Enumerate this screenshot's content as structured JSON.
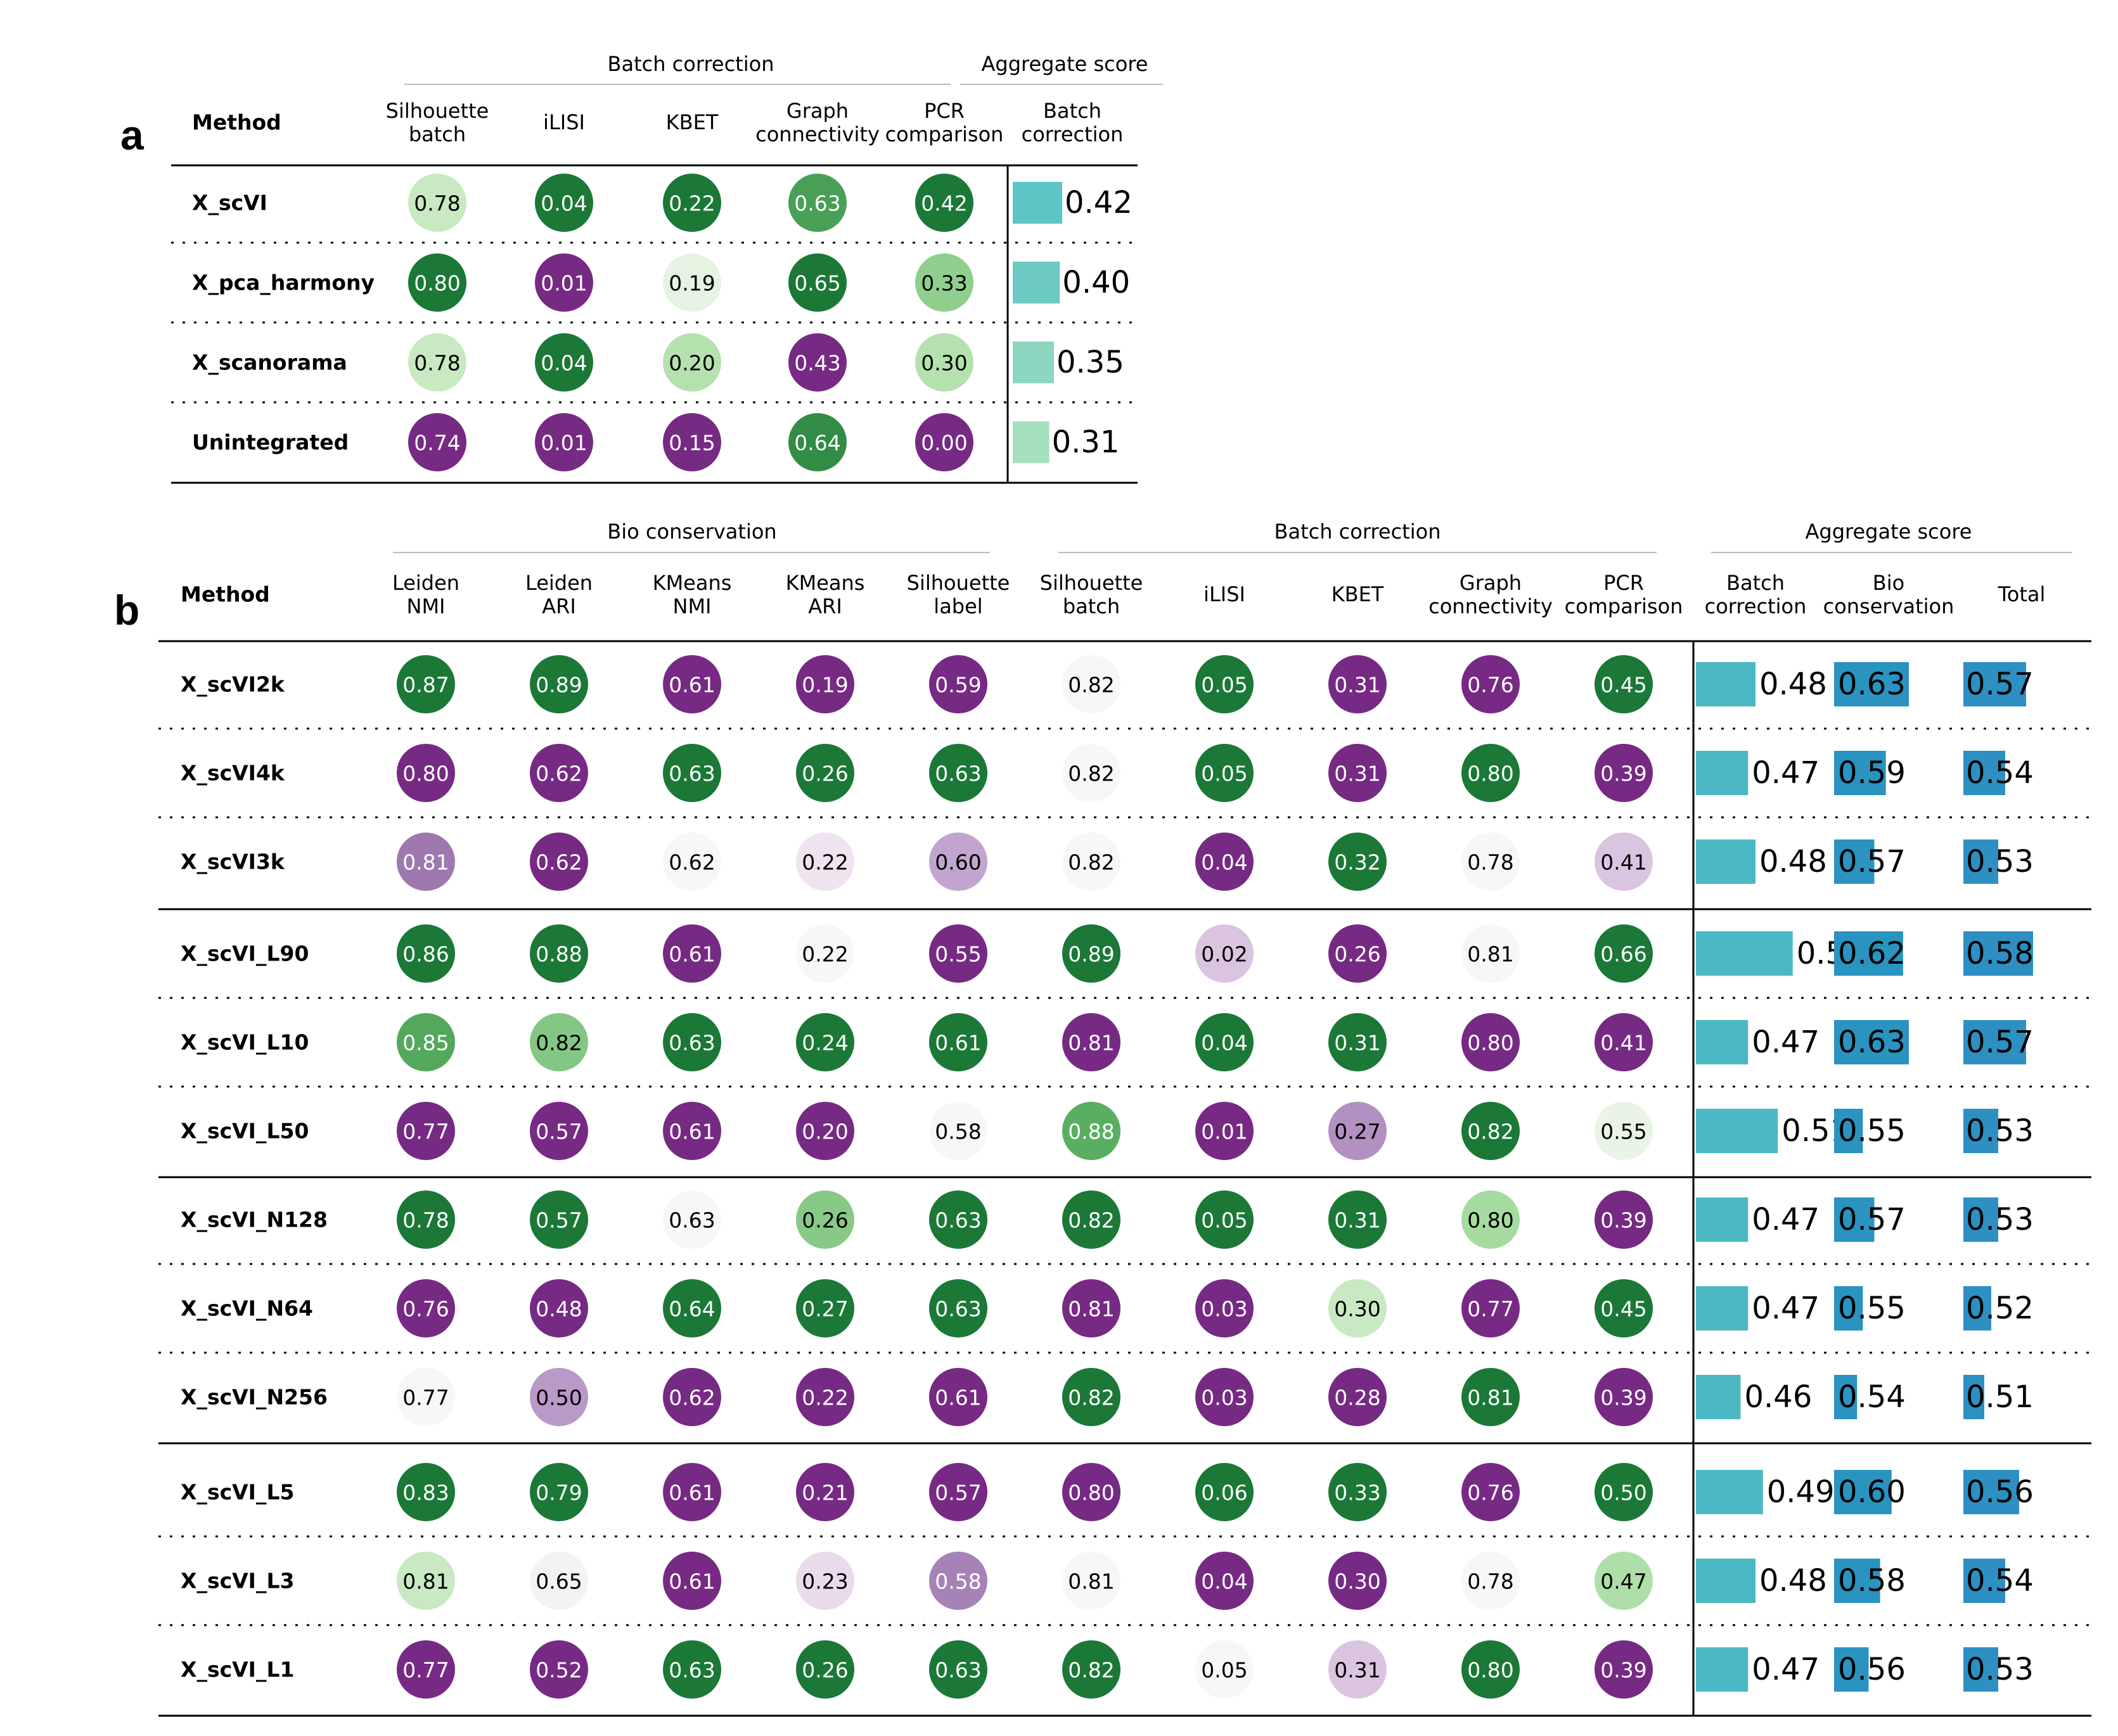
{
  "figure": {
    "panels": [
      {
        "letter": "a",
        "method_header": "Method",
        "groups": [
          {
            "label": "Batch correction"
          },
          {
            "label": "Aggregate score"
          }
        ],
        "columns": [
          {
            "label": [
              "Silhouette",
              "batch"
            ],
            "kind": "circle"
          },
          {
            "label": [
              "iLISI"
            ],
            "kind": "circle"
          },
          {
            "label": [
              "KBET"
            ],
            "kind": "circle"
          },
          {
            "label": [
              "Graph",
              "connectivity"
            ],
            "kind": "circle"
          },
          {
            "label": [
              "PCR",
              "comparison"
            ],
            "kind": "circle"
          },
          {
            "label": [
              "Batch",
              "correction"
            ],
            "kind": "bar"
          }
        ],
        "rows": [
          {
            "method": "X_scVI",
            "values": [
              "0.78",
              "0.04",
              "0.22",
              "0.63",
              "0.42",
              "0.42"
            ]
          },
          {
            "method": "X_pca_harmony",
            "values": [
              "0.80",
              "0.01",
              "0.19",
              "0.65",
              "0.33",
              "0.40"
            ]
          },
          {
            "method": "X_scanorama",
            "values": [
              "0.78",
              "0.04",
              "0.20",
              "0.43",
              "0.30",
              "0.35"
            ]
          },
          {
            "method": "Unintegrated",
            "values": [
              "0.74",
              "0.01",
              "0.15",
              "0.64",
              "0.00",
              "0.31"
            ]
          }
        ]
      },
      {
        "letter": "b",
        "method_header": "Method",
        "groups": [
          {
            "label": "Bio conservation"
          },
          {
            "label": "Batch correction"
          },
          {
            "label": "Aggregate score"
          }
        ],
        "columns": [
          {
            "label": [
              "Leiden",
              "NMI"
            ],
            "kind": "circle"
          },
          {
            "label": [
              "Leiden",
              "ARI"
            ],
            "kind": "circle"
          },
          {
            "label": [
              "KMeans",
              "NMI"
            ],
            "kind": "circle"
          },
          {
            "label": [
              "KMeans",
              "ARI"
            ],
            "kind": "circle"
          },
          {
            "label": [
              "Silhouette",
              "label"
            ],
            "kind": "circle"
          },
          {
            "label": [
              "Silhouette",
              "batch"
            ],
            "kind": "circle"
          },
          {
            "label": [
              "iLISI"
            ],
            "kind": "circle"
          },
          {
            "label": [
              "KBET"
            ],
            "kind": "circle"
          },
          {
            "label": [
              "Graph",
              "connectivity"
            ],
            "kind": "circle"
          },
          {
            "label": [
              "PCR",
              "comparison"
            ],
            "kind": "circle"
          },
          {
            "label": [
              "Batch",
              "correction"
            ],
            "kind": "bar"
          },
          {
            "label": [
              "Bio",
              "conservation"
            ],
            "kind": "bar"
          },
          {
            "label": [
              "Total"
            ],
            "kind": "bar"
          }
        ],
        "blocks": [
          {
            "rows": [
              {
                "method": "X_scVI2k",
                "values": [
                  "0.87",
                  "0.89",
                  "0.61",
                  "0.19",
                  "0.59",
                  "0.82",
                  "0.05",
                  "0.31",
                  "0.76",
                  "0.45",
                  "0.48",
                  "0.63",
                  "0.57"
                ]
              },
              {
                "method": "X_scVI4k",
                "values": [
                  "0.80",
                  "0.62",
                  "0.63",
                  "0.26",
                  "0.63",
                  "0.82",
                  "0.05",
                  "0.31",
                  "0.80",
                  "0.39",
                  "0.47",
                  "0.59",
                  "0.54"
                ]
              },
              {
                "method": "X_scVI3k",
                "values": [
                  "0.81",
                  "0.62",
                  "0.62",
                  "0.22",
                  "0.60",
                  "0.82",
                  "0.04",
                  "0.32",
                  "0.78",
                  "0.41",
                  "0.48",
                  "0.57",
                  "0.53"
                ]
              }
            ]
          },
          {
            "rows": [
              {
                "method": "X_scVI_L90",
                "values": [
                  "0.86",
                  "0.88",
                  "0.61",
                  "0.22",
                  "0.55",
                  "0.89",
                  "0.02",
                  "0.26",
                  "0.81",
                  "0.66",
                  "0.53",
                  "0.62",
                  "0.58"
                ]
              },
              {
                "method": "X_scVI_L10",
                "values": [
                  "0.85",
                  "0.82",
                  "0.63",
                  "0.24",
                  "0.61",
                  "0.81",
                  "0.04",
                  "0.31",
                  "0.80",
                  "0.41",
                  "0.47",
                  "0.63",
                  "0.57"
                ]
              },
              {
                "method": "X_scVI_L50",
                "values": [
                  "0.77",
                  "0.57",
                  "0.61",
                  "0.20",
                  "0.58",
                  "0.88",
                  "0.01",
                  "0.27",
                  "0.82",
                  "0.55",
                  "0.51",
                  "0.55",
                  "0.53"
                ]
              }
            ]
          },
          {
            "rows": [
              {
                "method": "X_scVI_N128",
                "values": [
                  "0.78",
                  "0.57",
                  "0.63",
                  "0.26",
                  "0.63",
                  "0.82",
                  "0.05",
                  "0.31",
                  "0.80",
                  "0.39",
                  "0.47",
                  "0.57",
                  "0.53"
                ]
              },
              {
                "method": "X_scVI_N64",
                "values": [
                  "0.76",
                  "0.48",
                  "0.64",
                  "0.27",
                  "0.63",
                  "0.81",
                  "0.03",
                  "0.30",
                  "0.77",
                  "0.45",
                  "0.47",
                  "0.55",
                  "0.52"
                ]
              },
              {
                "method": "X_scVI_N256",
                "values": [
                  "0.77",
                  "0.50",
                  "0.62",
                  "0.22",
                  "0.61",
                  "0.82",
                  "0.03",
                  "0.28",
                  "0.81",
                  "0.39",
                  "0.46",
                  "0.54",
                  "0.51"
                ]
              }
            ]
          },
          {
            "rows": [
              {
                "method": "X_scVI_L5",
                "values": [
                  "0.83",
                  "0.79",
                  "0.61",
                  "0.21",
                  "0.57",
                  "0.80",
                  "0.06",
                  "0.33",
                  "0.76",
                  "0.50",
                  "0.49",
                  "0.60",
                  "0.56"
                ]
              },
              {
                "method": "X_scVI_L3",
                "values": [
                  "0.81",
                  "0.65",
                  "0.61",
                  "0.23",
                  "0.58",
                  "0.81",
                  "0.04",
                  "0.30",
                  "0.78",
                  "0.47",
                  "0.48",
                  "0.58",
                  "0.54"
                ]
              },
              {
                "method": "X_scVI_L1",
                "values": [
                  "0.77",
                  "0.52",
                  "0.63",
                  "0.26",
                  "0.63",
                  "0.82",
                  "0.05",
                  "0.31",
                  "0.80",
                  "0.39",
                  "0.47",
                  "0.56",
                  "0.53"
                ]
              }
            ]
          }
        ]
      }
    ]
  },
  "chart_data": [
    {
      "type": "table",
      "title": "",
      "grid": false,
      "scale": "per-column min-max normalized; circle color diverging purple (low) to green (high); bar length proportional to value",
      "colors": {
        "diverging_low": "#762a83",
        "diverging_mid": "#f7f7f7",
        "diverging_high": "#1b7837",
        "bar_batch_low": "#a5e0c0",
        "bar_batch_high": "#5fc4c4",
        "bar_bio": "#2a93c0",
        "bar_total": "#2e8fc2"
      },
      "categories": [
        "X_scVI",
        "X_pca_harmony",
        "X_scanorama",
        "Unintegrated"
      ],
      "series": [
        {
          "name": "Silhouette batch",
          "values": [
            0.78,
            0.8,
            0.78,
            0.74
          ]
        },
        {
          "name": "iLISI",
          "values": [
            0.04,
            0.01,
            0.04,
            0.01
          ]
        },
        {
          "name": "KBET",
          "values": [
            0.22,
            0.19,
            0.2,
            0.15
          ]
        },
        {
          "name": "Graph connectivity",
          "values": [
            0.63,
            0.65,
            0.43,
            0.64
          ]
        },
        {
          "name": "PCR comparison",
          "values": [
            0.42,
            0.33,
            0.3,
            0.0
          ]
        },
        {
          "name": "Batch correction",
          "values": [
            0.42,
            0.4,
            0.35,
            0.31
          ]
        }
      ]
    },
    {
      "type": "table",
      "title": "",
      "grid": false,
      "scale": "per-column min-max normalized; circle color diverging purple (low) to green (high); bar length proportional to value",
      "colors": {
        "diverging_low": "#762a83",
        "diverging_mid": "#f7f7f7",
        "diverging_high": "#1b7837",
        "bar_batch": "#4bb8c4",
        "bar_bio": "#2a93c0",
        "bar_total": "#2e8fc2"
      },
      "categories": [
        "X_scVI2k",
        "X_scVI4k",
        "X_scVI3k",
        "X_scVI_L90",
        "X_scVI_L10",
        "X_scVI_L50",
        "X_scVI_N128",
        "X_scVI_N64",
        "X_scVI_N256",
        "X_scVI_L5",
        "X_scVI_L3",
        "X_scVI_L1"
      ],
      "series": [
        {
          "name": "Leiden NMI",
          "values": [
            0.87,
            0.8,
            0.81,
            0.86,
            0.85,
            0.77,
            0.78,
            0.76,
            0.77,
            0.83,
            0.81,
            0.77
          ]
        },
        {
          "name": "Leiden ARI",
          "values": [
            0.89,
            0.62,
            0.62,
            0.88,
            0.82,
            0.57,
            0.57,
            0.48,
            0.5,
            0.79,
            0.65,
            0.52
          ]
        },
        {
          "name": "KMeans NMI",
          "values": [
            0.61,
            0.63,
            0.62,
            0.61,
            0.63,
            0.61,
            0.63,
            0.64,
            0.62,
            0.61,
            0.61,
            0.63
          ]
        },
        {
          "name": "KMeans ARI",
          "values": [
            0.19,
            0.26,
            0.22,
            0.22,
            0.24,
            0.2,
            0.26,
            0.27,
            0.22,
            0.21,
            0.23,
            0.26
          ]
        },
        {
          "name": "Silhouette label",
          "values": [
            0.59,
            0.63,
            0.6,
            0.55,
            0.61,
            0.58,
            0.63,
            0.63,
            0.61,
            0.57,
            0.58,
            0.63
          ]
        },
        {
          "name": "Silhouette batch",
          "values": [
            0.82,
            0.82,
            0.82,
            0.89,
            0.81,
            0.88,
            0.82,
            0.81,
            0.82,
            0.8,
            0.81,
            0.82
          ]
        },
        {
          "name": "iLISI",
          "values": [
            0.05,
            0.05,
            0.04,
            0.02,
            0.04,
            0.01,
            0.05,
            0.03,
            0.03,
            0.06,
            0.04,
            0.05
          ]
        },
        {
          "name": "KBET",
          "values": [
            0.31,
            0.31,
            0.32,
            0.26,
            0.31,
            0.27,
            0.31,
            0.3,
            0.28,
            0.33,
            0.3,
            0.31
          ]
        },
        {
          "name": "Graph connectivity",
          "values": [
            0.76,
            0.8,
            0.78,
            0.81,
            0.8,
            0.82,
            0.8,
            0.77,
            0.81,
            0.76,
            0.78,
            0.8
          ]
        },
        {
          "name": "PCR comparison",
          "values": [
            0.45,
            0.39,
            0.41,
            0.66,
            0.41,
            0.55,
            0.39,
            0.45,
            0.39,
            0.5,
            0.47,
            0.39
          ]
        },
        {
          "name": "Batch correction",
          "values": [
            0.48,
            0.47,
            0.48,
            0.53,
            0.47,
            0.51,
            0.47,
            0.47,
            0.46,
            0.49,
            0.48,
            0.47
          ]
        },
        {
          "name": "Bio conservation",
          "values": [
            0.63,
            0.59,
            0.57,
            0.62,
            0.63,
            0.55,
            0.57,
            0.55,
            0.54,
            0.6,
            0.58,
            0.56
          ]
        },
        {
          "name": "Total",
          "values": [
            0.57,
            0.54,
            0.53,
            0.58,
            0.57,
            0.53,
            0.53,
            0.52,
            0.51,
            0.56,
            0.54,
            0.53
          ]
        }
      ]
    }
  ]
}
